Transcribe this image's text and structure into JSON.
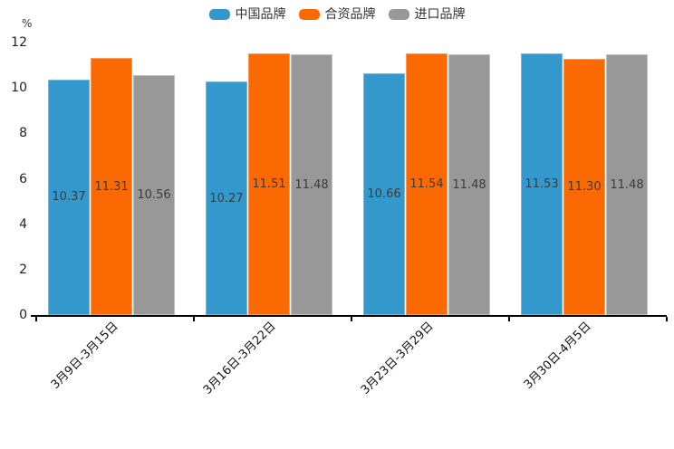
{
  "chart_data": {
    "type": "bar",
    "unit_label": "%",
    "categories": [
      "3月9日-3月15日",
      "3月16日-3月22日",
      "3月23日-3月29日",
      "3月30日-4月5日"
    ],
    "series": [
      {
        "name": "中国品牌",
        "color": "#3398CC",
        "border_color": "#77B7DC",
        "values": [
          10.37,
          10.27,
          10.66,
          11.53
        ]
      },
      {
        "name": "合资品牌",
        "color": "#FB6A02",
        "border_color": "#FD9A55",
        "values": [
          11.31,
          11.51,
          11.54,
          11.3
        ]
      },
      {
        "name": "进口品牌",
        "color": "#989898",
        "border_color": "#C0C0C0",
        "values": [
          10.56,
          11.48,
          11.48,
          11.48
        ]
      }
    ],
    "value_label_decimals": 2,
    "ylabel": "%",
    "ylim": [
      0,
      12
    ],
    "yticks": [
      0,
      2,
      4,
      6,
      8,
      10,
      12
    ],
    "legend_position": "top",
    "grid": false,
    "value_labels": true
  }
}
